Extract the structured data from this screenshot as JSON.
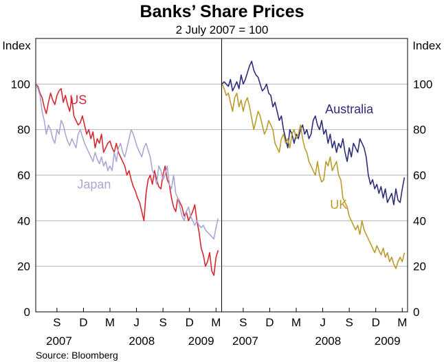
{
  "title": "Banks’ Share Prices",
  "subtitle": "2 July 2007 = 100",
  "source": "Source: Bloomberg",
  "ylabel_left": "Index",
  "ylabel_right": "Index",
  "colors": {
    "us": "#d7262e",
    "japan": "#a9a7d4",
    "australia": "#2c2c79",
    "uk": "#b99c2b",
    "grid": "#b3b3b3"
  },
  "chart_data": [
    {
      "type": "line",
      "panel": "left",
      "xlim": [
        2007.5,
        2009.25
      ],
      "ylim": [
        0,
        120
      ],
      "yticks": [
        0,
        20,
        40,
        60,
        80,
        100
      ],
      "month_ticks": [
        {
          "label": "S",
          "x": 2007.7
        },
        {
          "label": "D",
          "x": 2007.95
        },
        {
          "label": "M",
          "x": 2008.2
        },
        {
          "label": "J",
          "x": 2008.45
        },
        {
          "label": "S",
          "x": 2008.7
        },
        {
          "label": "D",
          "x": 2008.95
        },
        {
          "label": "M",
          "x": 2009.2
        }
      ],
      "year_labels": [
        {
          "label": "2007",
          "x": 2007.72
        },
        {
          "label": "2008",
          "x": 2008.5
        },
        {
          "label": "2009",
          "x": 2009.06
        }
      ],
      "series": [
        {
          "name": "US",
          "color_key": "us",
          "label_at": [
            2007.9,
            93
          ],
          "x": [
            2007.5,
            2007.52,
            2007.54,
            2007.56,
            2007.58,
            2007.6,
            2007.62,
            2007.64,
            2007.66,
            2007.68,
            2007.7,
            2007.72,
            2007.74,
            2007.76,
            2007.78,
            2007.8,
            2007.82,
            2007.84,
            2007.86,
            2007.88,
            2007.9,
            2007.92,
            2007.94,
            2007.96,
            2007.98,
            2008.0,
            2008.02,
            2008.04,
            2008.06,
            2008.08,
            2008.1,
            2008.12,
            2008.14,
            2008.16,
            2008.18,
            2008.2,
            2008.22,
            2008.24,
            2008.26,
            2008.28,
            2008.3,
            2008.32,
            2008.34,
            2008.36,
            2008.38,
            2008.4,
            2008.42,
            2008.44,
            2008.46,
            2008.48,
            2008.5,
            2008.52,
            2008.54,
            2008.56,
            2008.58,
            2008.6,
            2008.62,
            2008.64,
            2008.66,
            2008.68,
            2008.7,
            2008.72,
            2008.74,
            2008.76,
            2008.78,
            2008.8,
            2008.82,
            2008.84,
            2008.86,
            2008.88,
            2008.9,
            2008.92,
            2008.94,
            2008.96,
            2008.98,
            2009.0,
            2009.02,
            2009.04,
            2009.06,
            2009.08,
            2009.1,
            2009.12,
            2009.14,
            2009.16,
            2009.18,
            2009.2,
            2009.22
          ],
          "values": [
            100,
            99,
            96,
            94,
            90,
            87,
            92,
            96,
            93,
            91,
            95,
            97,
            98,
            92,
            95,
            91,
            88,
            94,
            86,
            84,
            82,
            83,
            86,
            82,
            78,
            80,
            76,
            79,
            72,
            76,
            74,
            78,
            70,
            72,
            74,
            75,
            72,
            70,
            74,
            70,
            68,
            66,
            64,
            60,
            62,
            58,
            55,
            53,
            50,
            48,
            44,
            40,
            52,
            58,
            60,
            56,
            62,
            58,
            55,
            54,
            60,
            64,
            58,
            56,
            50,
            46,
            44,
            50,
            48,
            46,
            42,
            44,
            40,
            42,
            44,
            47,
            40,
            35,
            28,
            25,
            20,
            22,
            26,
            18,
            16,
            24,
            27
          ]
        },
        {
          "name": "Japan",
          "color_key": "japan",
          "label_at": [
            2008.05,
            56
          ],
          "x": [
            2007.5,
            2007.52,
            2007.54,
            2007.56,
            2007.58,
            2007.6,
            2007.62,
            2007.64,
            2007.66,
            2007.68,
            2007.7,
            2007.72,
            2007.74,
            2007.76,
            2007.78,
            2007.8,
            2007.82,
            2007.84,
            2007.86,
            2007.88,
            2007.9,
            2007.92,
            2007.94,
            2007.96,
            2007.98,
            2008.0,
            2008.02,
            2008.04,
            2008.06,
            2008.08,
            2008.1,
            2008.12,
            2008.14,
            2008.16,
            2008.18,
            2008.2,
            2008.22,
            2008.24,
            2008.26,
            2008.28,
            2008.3,
            2008.32,
            2008.34,
            2008.36,
            2008.38,
            2008.4,
            2008.42,
            2008.44,
            2008.46,
            2008.48,
            2008.5,
            2008.52,
            2008.54,
            2008.56,
            2008.58,
            2008.6,
            2008.62,
            2008.64,
            2008.66,
            2008.68,
            2008.7,
            2008.72,
            2008.74,
            2008.76,
            2008.78,
            2008.8,
            2008.82,
            2008.84,
            2008.86,
            2008.88,
            2008.9,
            2008.92,
            2008.94,
            2008.96,
            2008.98,
            2009.0,
            2009.02,
            2009.04,
            2009.06,
            2009.08,
            2009.1,
            2009.12,
            2009.14,
            2009.16,
            2009.18,
            2009.2,
            2009.22
          ],
          "values": [
            100,
            98,
            95,
            88,
            84,
            78,
            82,
            80,
            76,
            74,
            80,
            78,
            84,
            82,
            78,
            75,
            73,
            76,
            74,
            72,
            78,
            80,
            77,
            74,
            72,
            70,
            68,
            66,
            70,
            67,
            65,
            68,
            64,
            66,
            62,
            64,
            62,
            70,
            66,
            72,
            74,
            70,
            68,
            72,
            76,
            80,
            78,
            75,
            72,
            70,
            68,
            72,
            74,
            71,
            68,
            62,
            60,
            56,
            64,
            62,
            58,
            60,
            64,
            56,
            54,
            60,
            52,
            50,
            46,
            42,
            40,
            44,
            46,
            42,
            40,
            38,
            40,
            38,
            37,
            38,
            36,
            35,
            34,
            33,
            32,
            37,
            41
          ]
        }
      ]
    },
    {
      "type": "line",
      "panel": "right",
      "xlim": [
        2007.5,
        2009.25
      ],
      "ylim": [
        0,
        120
      ],
      "yticks": [
        0,
        20,
        40,
        60,
        80,
        100
      ],
      "month_ticks": [
        {
          "label": "S",
          "x": 2007.7
        },
        {
          "label": "D",
          "x": 2007.95
        },
        {
          "label": "M",
          "x": 2008.2
        },
        {
          "label": "J",
          "x": 2008.45
        },
        {
          "label": "S",
          "x": 2008.7
        },
        {
          "label": "D",
          "x": 2008.95
        },
        {
          "label": "M",
          "x": 2009.2
        }
      ],
      "year_labels": [
        {
          "label": "2007",
          "x": 2007.72
        },
        {
          "label": "2008",
          "x": 2008.5
        },
        {
          "label": "2009",
          "x": 2009.06
        }
      ],
      "series": [
        {
          "name": "Australia",
          "color_key": "australia",
          "label_at": [
            2008.7,
            89
          ],
          "x": [
            2007.5,
            2007.52,
            2007.54,
            2007.56,
            2007.58,
            2007.6,
            2007.62,
            2007.64,
            2007.66,
            2007.68,
            2007.7,
            2007.72,
            2007.74,
            2007.76,
            2007.78,
            2007.8,
            2007.82,
            2007.84,
            2007.86,
            2007.88,
            2007.9,
            2007.92,
            2007.94,
            2007.96,
            2007.98,
            2008.0,
            2008.02,
            2008.04,
            2008.06,
            2008.08,
            2008.1,
            2008.12,
            2008.14,
            2008.16,
            2008.18,
            2008.2,
            2008.22,
            2008.24,
            2008.26,
            2008.28,
            2008.3,
            2008.32,
            2008.34,
            2008.36,
            2008.38,
            2008.4,
            2008.42,
            2008.44,
            2008.46,
            2008.48,
            2008.5,
            2008.52,
            2008.54,
            2008.56,
            2008.58,
            2008.6,
            2008.62,
            2008.64,
            2008.66,
            2008.68,
            2008.7,
            2008.72,
            2008.74,
            2008.76,
            2008.78,
            2008.8,
            2008.82,
            2008.84,
            2008.86,
            2008.88,
            2008.9,
            2008.92,
            2008.94,
            2008.96,
            2008.98,
            2009.0,
            2009.02,
            2009.04,
            2009.06,
            2009.08,
            2009.1,
            2009.12,
            2009.14,
            2009.16,
            2009.18,
            2009.2,
            2009.22
          ],
          "values": [
            100,
            101,
            100,
            99,
            102,
            97,
            99,
            101,
            98,
            104,
            100,
            102,
            105,
            108,
            110,
            106,
            104,
            103,
            100,
            97,
            98,
            100,
            96,
            95,
            90,
            92,
            88,
            84,
            86,
            80,
            76,
            72,
            80,
            78,
            74,
            78,
            76,
            80,
            82,
            78,
            80,
            76,
            78,
            84,
            86,
            82,
            80,
            84,
            78,
            80,
            74,
            78,
            72,
            75,
            70,
            74,
            72,
            76,
            70,
            66,
            72,
            68,
            74,
            72,
            70,
            76,
            74,
            72,
            68,
            60,
            56,
            58,
            54,
            56,
            52,
            55,
            50,
            54,
            48,
            50,
            52,
            47,
            54,
            49,
            48,
            54,
            59
          ]
        },
        {
          "name": "UK",
          "color_key": "uk",
          "label_at": [
            2008.6,
            47
          ],
          "x": [
            2007.5,
            2007.52,
            2007.54,
            2007.56,
            2007.58,
            2007.6,
            2007.62,
            2007.64,
            2007.66,
            2007.68,
            2007.7,
            2007.72,
            2007.74,
            2007.76,
            2007.78,
            2007.8,
            2007.82,
            2007.84,
            2007.86,
            2007.88,
            2007.9,
            2007.92,
            2007.94,
            2007.96,
            2007.98,
            2008.0,
            2008.02,
            2008.04,
            2008.06,
            2008.08,
            2008.1,
            2008.12,
            2008.14,
            2008.16,
            2008.18,
            2008.2,
            2008.22,
            2008.24,
            2008.26,
            2008.28,
            2008.3,
            2008.32,
            2008.34,
            2008.36,
            2008.38,
            2008.4,
            2008.42,
            2008.44,
            2008.46,
            2008.48,
            2008.5,
            2008.52,
            2008.54,
            2008.56,
            2008.58,
            2008.6,
            2008.62,
            2008.64,
            2008.66,
            2008.68,
            2008.7,
            2008.72,
            2008.74,
            2008.76,
            2008.78,
            2008.8,
            2008.82,
            2008.84,
            2008.86,
            2008.88,
            2008.9,
            2008.92,
            2008.94,
            2008.96,
            2008.98,
            2009.0,
            2009.02,
            2009.04,
            2009.06,
            2009.08,
            2009.1,
            2009.12,
            2009.14,
            2009.16,
            2009.18,
            2009.2,
            2009.22
          ],
          "values": [
            100,
            98,
            95,
            96,
            92,
            88,
            94,
            96,
            90,
            93,
            88,
            92,
            94,
            90,
            85,
            80,
            84,
            88,
            86,
            82,
            78,
            80,
            84,
            82,
            80,
            74,
            72,
            70,
            76,
            78,
            74,
            76,
            72,
            78,
            80,
            76,
            78,
            82,
            76,
            72,
            70,
            66,
            64,
            62,
            60,
            66,
            60,
            57,
            58,
            66,
            64,
            68,
            62,
            64,
            66,
            60,
            58,
            50,
            48,
            46,
            42,
            40,
            38,
            36,
            38,
            34,
            40,
            36,
            34,
            32,
            30,
            28,
            26,
            29,
            27,
            25,
            28,
            24,
            26,
            22,
            24,
            21,
            19,
            22,
            24,
            22,
            26
          ]
        }
      ]
    }
  ]
}
